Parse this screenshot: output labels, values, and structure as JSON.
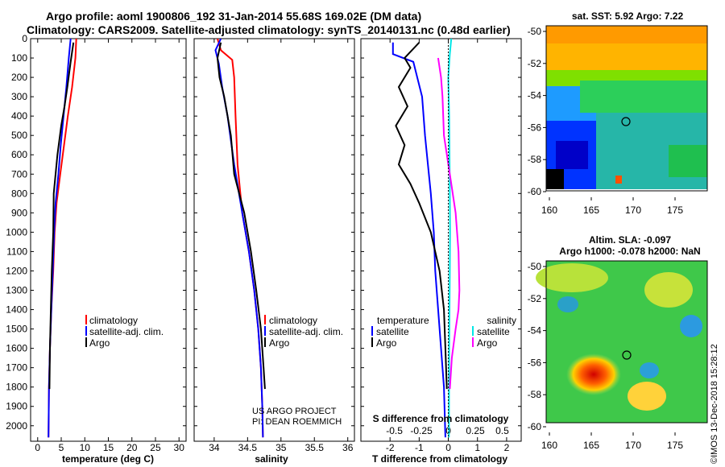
{
  "header": {
    "title_line1": "Argo profile: aoml 1900806_192 31-Jan-2014 55.68S 169.02E (DM data)",
    "title_line2": "Climatology: CARS2009. Satellite-adjusted climatology: synTS_20140131.nc (0.48d earlier)"
  },
  "colors": {
    "climatology": "#ff0000",
    "satellite": "#0000ff",
    "argo": "#000000",
    "satellite_salinity": "#00e6e6",
    "climatology_salinity": "#ff00ff"
  },
  "chart_data": [
    {
      "type": "line",
      "name": "temperature-profile",
      "xlabel": "temperature (deg C)",
      "ylabel": "",
      "xlim": [
        -1.5,
        31.5
      ],
      "ylim": [
        2080,
        0
      ],
      "xticks": [
        0,
        5,
        10,
        15,
        20,
        25,
        30
      ],
      "yticks": [
        0,
        100,
        200,
        300,
        400,
        500,
        600,
        700,
        800,
        900,
        1000,
        1100,
        1200,
        1300,
        1400,
        1500,
        1600,
        1700,
        1800,
        1900,
        2000
      ],
      "legend": [
        "climatology",
        "satellite-adj. clim.",
        "Argo"
      ],
      "series": [
        {
          "name": "climatology",
          "color": "#ff0000",
          "x": [
            8.2,
            8.0,
            7.3,
            6.4,
            5.6,
            4.8,
            4.0,
            3.6,
            3.3,
            2.9,
            2.6,
            2.4,
            2.3
          ],
          "y": [
            0,
            100,
            250,
            400,
            550,
            700,
            850,
            1000,
            1200,
            1400,
            1600,
            1800,
            2060
          ]
        },
        {
          "name": "satellite-adj. clim.",
          "color": "#0000ff",
          "x": [
            7.0,
            6.6,
            6.1,
            5.5,
            4.9,
            4.4,
            3.8,
            3.5,
            3.2,
            2.9,
            2.6,
            2.4,
            2.3
          ],
          "y": [
            0,
            100,
            250,
            400,
            550,
            700,
            850,
            1000,
            1200,
            1400,
            1600,
            1800,
            2060
          ]
        },
        {
          "name": "Argo",
          "color": "#000000",
          "x": [
            7.6,
            7.0,
            6.3,
            5.7,
            5.0,
            4.2,
            3.4,
            3.3,
            3.0,
            2.8,
            2.6,
            2.5
          ],
          "y": [
            20,
            120,
            250,
            350,
            450,
            600,
            800,
            1000,
            1200,
            1400,
            1600,
            1810
          ]
        }
      ]
    },
    {
      "type": "line",
      "name": "salinity-profile",
      "xlabel": "salinity",
      "xlim": [
        33.7,
        36.1
      ],
      "ylim": [
        2080,
        0
      ],
      "xticks": [
        34,
        34.5,
        35,
        35.5,
        36
      ],
      "legend": [
        "climatology",
        "satellite-adj. clim.",
        "Argo"
      ],
      "series": [
        {
          "name": "climatology",
          "color": "#ff0000",
          "x": [
            34.05,
            34.1,
            34.27,
            34.3,
            34.32,
            34.35,
            34.42,
            34.52,
            34.6,
            34.66,
            34.7,
            34.72,
            34.73
          ],
          "y": [
            0,
            60,
            110,
            200,
            400,
            650,
            900,
            1100,
            1300,
            1500,
            1700,
            1900,
            2060
          ]
        },
        {
          "name": "satellite-adj. clim.",
          "color": "#0000ff",
          "x": [
            34.1,
            34.02,
            34.07,
            34.12,
            34.2,
            34.3,
            34.42,
            34.52,
            34.6,
            34.66,
            34.7,
            34.72,
            34.73
          ],
          "y": [
            0,
            60,
            130,
            250,
            400,
            650,
            900,
            1100,
            1300,
            1500,
            1700,
            1900,
            2060
          ]
        },
        {
          "name": "Argo",
          "color": "#000000",
          "x": [
            34.1,
            34.05,
            34.08,
            34.15,
            34.2,
            34.25,
            34.3,
            34.45,
            34.55,
            34.63,
            34.7,
            34.74,
            34.76
          ],
          "y": [
            20,
            100,
            200,
            300,
            400,
            500,
            700,
            900,
            1100,
            1300,
            1500,
            1700,
            1810
          ]
        }
      ],
      "annotations": [
        "US ARGO PROJECT",
        "PI: DEAN ROEMMICH"
      ]
    },
    {
      "type": "line",
      "name": "difference-profile",
      "xlabel": "T difference from climatology",
      "xlim": [
        -3,
        2.5
      ],
      "ylim": [
        2080,
        0
      ],
      "xticks": [
        -2,
        -1,
        0,
        1,
        2
      ],
      "secondary_xlabel": "S difference from climatology",
      "secondary_xticks": [
        -0.5,
        -0.25,
        0,
        0.25,
        0.5
      ],
      "legend_left_title": "temperature",
      "legend_left": [
        "satellite",
        "Argo"
      ],
      "legend_right_title": "salinity",
      "legend_right": [
        "satellite",
        "Argo"
      ],
      "series": [
        {
          "name": "T satellite",
          "color": "#0000ff",
          "x": [
            -1.9,
            -1.9,
            -1.2,
            -0.9,
            -0.8,
            -0.7,
            -0.6,
            -0.5,
            -0.45,
            -0.35,
            -0.25,
            -0.15,
            -0.1
          ],
          "y": [
            20,
            80,
            120,
            300,
            500,
            650,
            800,
            1000,
            1200,
            1400,
            1600,
            1800,
            2060
          ]
        },
        {
          "name": "T Argo",
          "color": "#000000",
          "x": [
            -1.0,
            -1.5,
            -1.3,
            -1.7,
            -1.4,
            -1.8,
            -1.5,
            -1.7,
            -1.3,
            -1.0,
            -0.6,
            -0.3,
            -0.15,
            -0.1,
            -0.05
          ],
          "y": [
            20,
            100,
            150,
            250,
            350,
            450,
            550,
            650,
            750,
            850,
            1000,
            1200,
            1400,
            1600,
            1810
          ]
        },
        {
          "name": "S satellite",
          "color": "#00e6e6",
          "x": [
            0.1,
            0.05,
            0.0,
            0.03,
            0.04,
            0.05,
            0.06,
            0.05,
            0.04,
            0.03,
            0.02
          ],
          "y": [
            0,
            80,
            200,
            400,
            600,
            800,
            1000,
            1200,
            1400,
            1600,
            2060
          ]
        },
        {
          "name": "S Argo",
          "color": "#ff00ff",
          "x": [
            -0.35,
            -0.25,
            -0.2,
            -0.15,
            0.05,
            0.25,
            0.35,
            0.38,
            0.35,
            0.25,
            0.12,
            0.05
          ],
          "y": [
            100,
            200,
            300,
            500,
            700,
            900,
            1100,
            1300,
            1400,
            1500,
            1650,
            1810
          ]
        }
      ]
    }
  ],
  "map_top": {
    "title": "sat. SST: 5.92 Argo: 7.22",
    "lat_ticks": [
      "-50",
      "-52",
      "-54",
      "-56",
      "-58",
      "-60"
    ],
    "lon_ticks": [
      "160",
      "165",
      "170",
      "175"
    ]
  },
  "map_bottom": {
    "title_line1": "Altim. SLA: -0.097",
    "title_line2": "Argo h1000: -0.078 h2000: NaN",
    "lat_ticks": [
      "-50",
      "-52",
      "-54",
      "-56",
      "-58",
      "-60"
    ],
    "lon_ticks": [
      "160",
      "165",
      "170",
      "175"
    ]
  },
  "watermark": "©IMOS 13-Dec-2018 15:28:12"
}
